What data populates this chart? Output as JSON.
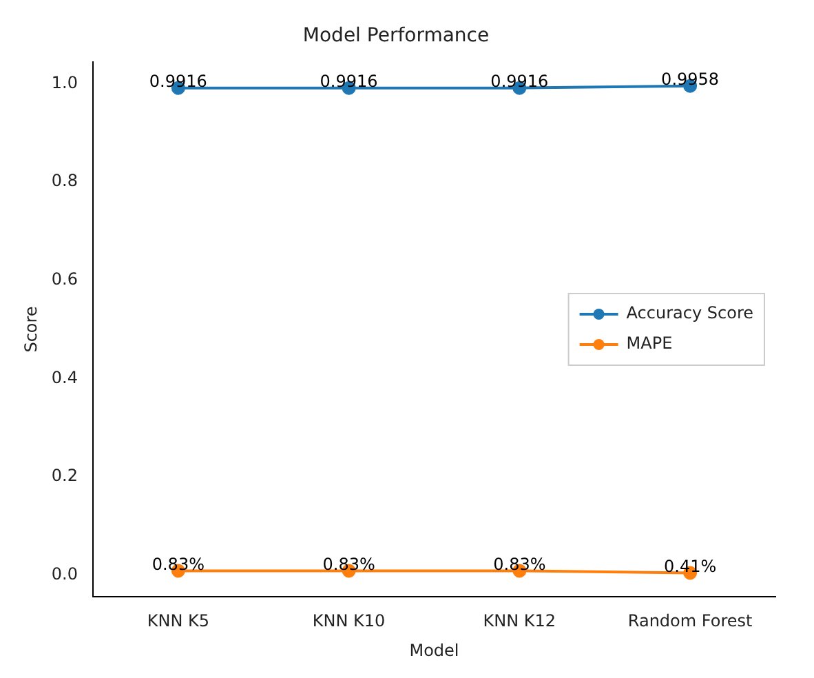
{
  "chart_data": {
    "type": "line",
    "title": "Model Performance",
    "xlabel": "Model",
    "ylabel": "Score",
    "categories": [
      "KNN K5",
      "KNN K10",
      "KNN K12",
      "Random Forest"
    ],
    "series": [
      {
        "name": "Accuracy Score",
        "color": "#1f77b4",
        "values": [
          0.9916,
          0.9916,
          0.9916,
          0.9958
        ],
        "value_labels": [
          "0.9916",
          "0.9916",
          "0.9916",
          "0.9958"
        ]
      },
      {
        "name": "MAPE",
        "color": "#ff7f0e",
        "values": [
          0.0083,
          0.0083,
          0.0083,
          0.0041
        ],
        "value_labels": [
          "0.83%",
          "0.83%",
          "0.83%",
          "0.41%"
        ]
      }
    ],
    "ylim": [
      -0.045,
      1.045
    ],
    "yticks": [
      {
        "value": 0,
        "label": "0.0"
      },
      0.2,
      0.4,
      0.6,
      0.8,
      {
        "value": 1,
        "label": "1.0"
      }
    ],
    "marker": "circle",
    "line_style": "solid",
    "legend": "right",
    "grid": false
  }
}
